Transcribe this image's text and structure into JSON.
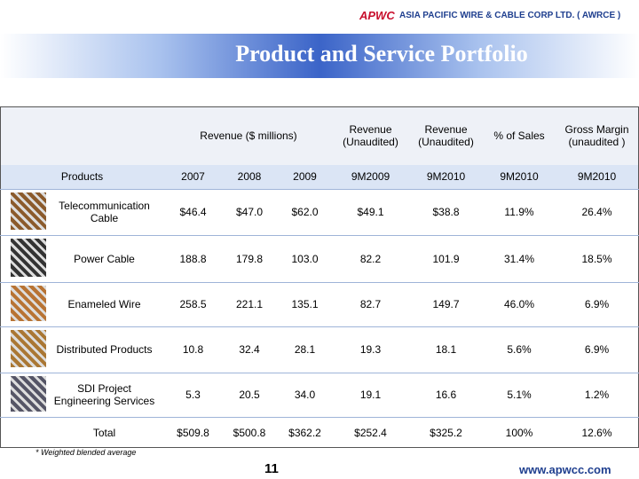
{
  "header": {
    "logo": "APWC",
    "company": "ASIA PACIFIC WIRE & CABLE CORP LTD. ( AWRCE )",
    "title": "Product and Service Portfolio"
  },
  "table": {
    "column_headers": [
      "Revenue ($ millions)",
      "Revenue (Unaudited)",
      "Revenue (Unaudited)",
      "% of Sales",
      "Gross Margin (unaudited )"
    ],
    "subheaders": [
      "Products",
      "2007",
      "2008",
      "2009",
      "9M2009",
      "9M2010",
      "9M2010",
      "9M2010"
    ],
    "rows": [
      [
        "Telecommunication Cable",
        "$46.4",
        "$47.0",
        "$62.0",
        "$49.1",
        "$38.8",
        "11.9%",
        "26.4%"
      ],
      [
        "Power Cable",
        "188.8",
        "179.8",
        "103.0",
        "82.2",
        "101.9",
        "31.4%",
        "18.5%"
      ],
      [
        "Enameled Wire",
        "258.5",
        "221.1",
        "135.1",
        "82.7",
        "149.7",
        "46.0%",
        "6.9%"
      ],
      [
        "Distributed Products",
        "10.8",
        "32.4",
        "28.1",
        "19.3",
        "18.1",
        "5.6%",
        "6.9%"
      ],
      [
        "SDI Project Engineering Services",
        "5.3",
        "20.5",
        "34.0",
        "19.1",
        "16.6",
        "5.1%",
        "1.2%"
      ],
      [
        "Total",
        "$509.8",
        "$500.8",
        "$362.2",
        "$252.4",
        "$325.2",
        "100%",
        "12.6%"
      ]
    ]
  },
  "footnote": "* Weighted blended average",
  "page_number": "11",
  "website": "www.apwcc.com"
}
